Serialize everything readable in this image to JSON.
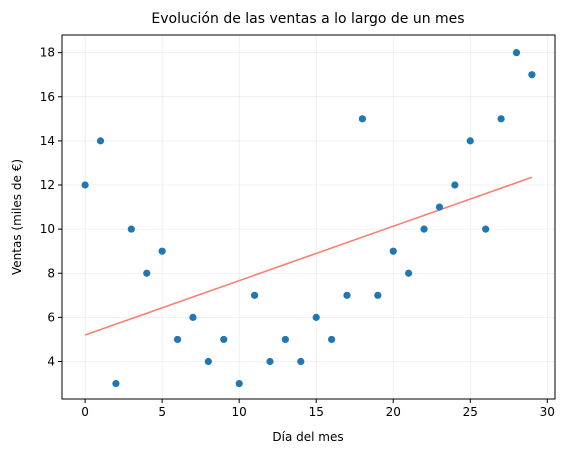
{
  "chart_data": {
    "type": "scatter",
    "title": "Evolución de las ventas a lo largo de un mes",
    "xlabel": "Día del mes",
    "ylabel": "Ventas (miles de €)",
    "xlim": [
      -1.5,
      30.5
    ],
    "ylim": [
      2.3,
      18.8
    ],
    "xticks": [
      0,
      5,
      10,
      15,
      20,
      25,
      30
    ],
    "yticks": [
      4,
      6,
      8,
      10,
      12,
      14,
      16,
      18
    ],
    "grid": true,
    "x": [
      0,
      1,
      2,
      3,
      4,
      5,
      6,
      7,
      8,
      9,
      10,
      11,
      12,
      13,
      14,
      15,
      16,
      17,
      18,
      19,
      20,
      21,
      22,
      23,
      24,
      25,
      26,
      27,
      28,
      29
    ],
    "y": [
      12,
      14,
      3,
      10,
      8,
      9,
      5,
      6,
      4,
      5,
      3,
      7,
      4,
      5,
      4,
      6,
      5,
      7,
      15,
      7,
      9,
      8,
      10,
      11,
      12,
      14,
      10,
      15,
      18,
      17
    ],
    "trend_line": {
      "x": [
        0,
        29
      ],
      "y": [
        5.2,
        12.35
      ]
    },
    "colors": {
      "points": "#1f77b4",
      "trend": "#fa8072",
      "grid": "#e6e6e6"
    }
  }
}
